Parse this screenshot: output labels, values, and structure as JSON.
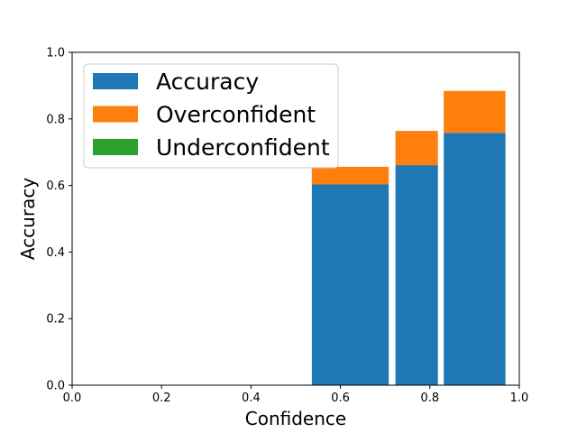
{
  "chart_data": {
    "type": "bar",
    "stacked": true,
    "xlabel": "Confidence",
    "ylabel": "Accuracy",
    "xlim": [
      0,
      1
    ],
    "ylim": [
      0,
      1
    ],
    "xticks": [
      "0.0",
      "0.2",
      "0.4",
      "0.6",
      "0.8",
      "1.0"
    ],
    "yticks": [
      "0.0",
      "0.2",
      "0.4",
      "0.6",
      "0.8",
      "1.0"
    ],
    "grid": false,
    "legend_position": "top-left",
    "bars": [
      {
        "x_start": 0.536,
        "x_end": 0.708,
        "accuracy": 0.603,
        "overconfident": 0.053,
        "underconfident": 0.0
      },
      {
        "x_start": 0.723,
        "x_end": 0.818,
        "accuracy": 0.661,
        "overconfident": 0.103,
        "underconfident": 0.0
      },
      {
        "x_start": 0.831,
        "x_end": 0.969,
        "accuracy": 0.758,
        "overconfident": 0.126,
        "underconfident": 0.0
      }
    ],
    "series": [
      {
        "name": "Accuracy",
        "color": "#1f77b4"
      },
      {
        "name": "Overconfident",
        "color": "#ff7f0e"
      },
      {
        "name": "Underconfident",
        "color": "#2ca02c"
      }
    ]
  }
}
